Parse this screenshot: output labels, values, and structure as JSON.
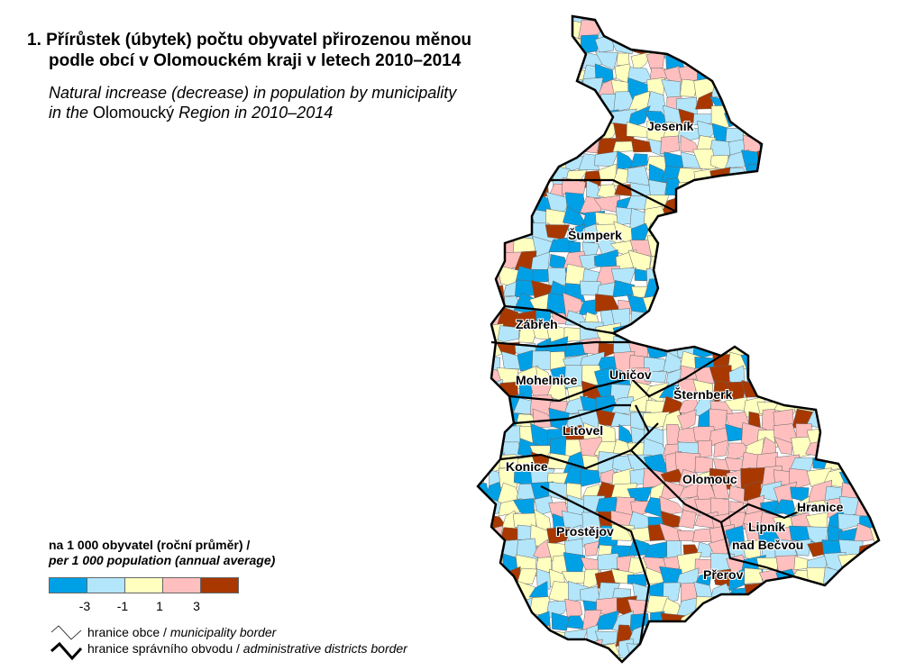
{
  "title": {
    "line1": "1. Přírůstek (úbytek) počtu obyvatel přirozenou měnou",
    "line2": "podle obcí v Olomouckém kraji v letech 2010–2014",
    "en_line1": "Natural increase (decrease) in population by municipality",
    "en_line2_a": "in the ",
    "en_line2_b": "Olomoucký",
    "en_line2_c": " Region in 2010–2014"
  },
  "districts": [
    {
      "name": "Jeseník"
    },
    {
      "name": "Šumperk"
    },
    {
      "name": "Zábřeh"
    },
    {
      "name": "Mohelnice"
    },
    {
      "name": "Uničov"
    },
    {
      "name": "Šternberk"
    },
    {
      "name": "Litovel"
    },
    {
      "name": "Konice"
    },
    {
      "name": "Olomouc"
    },
    {
      "name": "Prostějov"
    },
    {
      "name": "Hranice"
    },
    {
      "name": "Lipník"
    },
    {
      "name": "nad Bečvou"
    },
    {
      "name": "Přerov"
    }
  ],
  "legend": {
    "heading_cz": "na 1 000 obyvatel (roční průměr) /",
    "heading_en": "per 1 000 population (annual average)",
    "colors": [
      "#00a0e6",
      "#b3e6fb",
      "#ffffc0",
      "#ffbfbf",
      "#a83800"
    ],
    "ticks": [
      "-3",
      "-1",
      "1",
      "3"
    ],
    "municipality_border_cz": "hranice obce / ",
    "municipality_border_en": "municipality border",
    "district_border_cz": "hranice správního obvodu / ",
    "district_border_en": "administrative districts border"
  }
}
